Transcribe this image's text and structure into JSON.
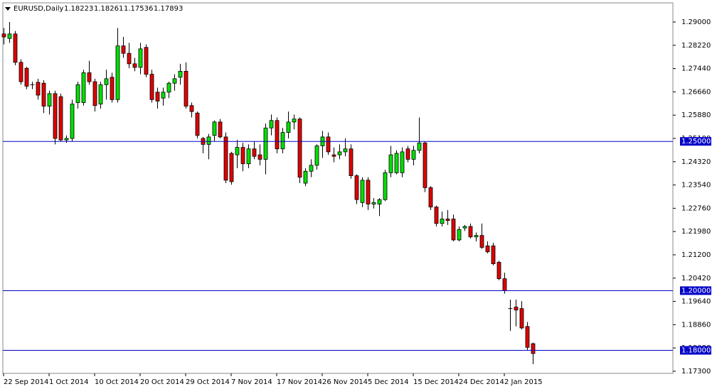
{
  "chart_data": {
    "type": "candlestick",
    "title": "EURUSD,Daily",
    "categories": [
      "22 Sep 2014",
      null,
      null,
      null,
      null,
      null,
      null,
      null,
      "1 Oct 2014",
      null,
      null,
      null,
      null,
      null,
      null,
      null,
      "10 Oct 2014",
      null,
      null,
      null,
      null,
      null,
      null,
      null,
      "20 Oct 2014",
      null,
      null,
      null,
      null,
      null,
      null,
      null,
      "29 Oct 2014",
      null,
      null,
      null,
      null,
      null,
      null,
      null,
      "7 Nov 2014",
      null,
      null,
      null,
      null,
      null,
      null,
      null,
      "17 Nov 2014",
      null,
      null,
      null,
      null,
      null,
      null,
      null,
      "26 Nov 2014",
      null,
      null,
      null,
      null,
      null,
      null,
      null,
      "5 Dec 2014",
      null,
      null,
      null,
      null,
      null,
      null,
      null,
      "15 Dec 2014",
      null,
      null,
      null,
      null,
      null,
      null,
      null,
      "24 Dec 2014",
      null,
      null,
      null,
      null,
      null,
      null,
      null,
      "2 Jan 2015",
      null,
      null,
      null,
      null,
      null
    ],
    "open": [
      1.286,
      1.2845,
      1.286,
      1.2765,
      1.2745,
      1.269,
      1.2698,
      1.2695,
      1.2618,
      1.266,
      1.265,
      1.2505,
      1.251,
      1.263,
      1.263,
      1.273,
      1.27,
      1.2625,
      1.269,
      1.2715,
      1.264,
      1.282,
      1.2795,
      1.276,
      1.2748,
      1.2815,
      1.2725,
      1.2665,
      1.2645,
      1.2665,
      1.2695,
      1.2715,
      1.2735,
      1.262,
      1.2595,
      1.251,
      1.249,
      1.252,
      1.2565,
      1.2515,
      1.246,
      1.2455,
      1.248,
      1.2425,
      1.2475,
      1.2455,
      1.244,
      1.2545,
      1.257,
      1.2475,
      1.253,
      1.2565,
      1.2575,
      1.236,
      1.24,
      1.242,
      1.2485,
      1.2515,
      1.2455,
      1.2455,
      1.2465,
      1.2475,
      1.2385,
      1.2295,
      1.237,
      1.229,
      1.229,
      1.2305,
      1.2395,
      1.2395,
      1.2395,
      1.2475,
      1.244,
      1.247,
      1.2495,
      1.2345,
      1.228,
      1.2225,
      1.224,
      1.224,
      1.217,
      1.221,
      1.2215,
      1.218,
      1.2185,
      1.215,
      1.215,
      1.2095,
      1.204,
      1.194,
      1.1945,
      1.194,
      1.188,
      1.18223
    ],
    "high": [
      1.288,
      1.29,
      1.287,
      1.2775,
      1.275,
      1.27,
      1.271,
      1.2705,
      1.267,
      1.267,
      1.266,
      1.252,
      1.264,
      1.27,
      1.274,
      1.277,
      1.271,
      1.27,
      1.274,
      1.273,
      1.288,
      1.285,
      1.283,
      1.278,
      1.283,
      1.2825,
      1.274,
      1.268,
      1.268,
      1.27,
      1.2725,
      1.276,
      1.2765,
      1.263,
      1.26,
      1.2515,
      1.2525,
      1.257,
      1.2575,
      1.253,
      1.2465,
      1.2505,
      1.2495,
      1.249,
      1.25,
      1.249,
      1.256,
      1.259,
      1.258,
      1.2545,
      1.26,
      1.259,
      1.258,
      1.241,
      1.244,
      1.249,
      1.2535,
      1.253,
      1.248,
      1.249,
      1.251,
      1.249,
      1.239,
      1.238,
      1.238,
      1.231,
      1.231,
      1.2405,
      1.2485,
      1.247,
      1.248,
      1.2485,
      1.2485,
      1.258,
      1.25,
      1.235,
      1.2285,
      1.2265,
      1.227,
      1.2255,
      1.2215,
      1.222,
      1.2225,
      1.2195,
      1.2225,
      1.2165,
      1.216,
      1.21,
      1.206,
      1.197,
      1.197,
      1.1965,
      1.1895,
      1.18261
    ],
    "low": [
      1.2825,
      1.283,
      1.2755,
      1.269,
      1.2675,
      1.2675,
      1.264,
      1.2595,
      1.259,
      1.249,
      1.25,
      1.2495,
      1.25,
      1.261,
      1.262,
      1.269,
      1.26,
      1.261,
      1.264,
      1.263,
      1.263,
      1.278,
      1.2745,
      1.2735,
      1.2725,
      1.2715,
      1.263,
      1.261,
      1.262,
      1.2645,
      1.267,
      1.269,
      1.261,
      1.258,
      1.251,
      1.246,
      1.244,
      1.25,
      1.251,
      1.236,
      1.2355,
      1.241,
      1.24,
      1.241,
      1.244,
      1.242,
      1.239,
      1.252,
      1.246,
      1.246,
      1.251,
      1.254,
      1.236,
      1.235,
      1.238,
      1.2405,
      1.2445,
      1.2455,
      1.243,
      1.244,
      1.245,
      1.2375,
      1.229,
      1.228,
      1.227,
      1.2275,
      1.225,
      1.23,
      1.238,
      1.239,
      1.238,
      1.243,
      1.242,
      1.246,
      1.233,
      1.227,
      1.2215,
      1.2215,
      1.222,
      1.2165,
      1.2165,
      1.22,
      1.2175,
      1.2165,
      1.214,
      1.2125,
      1.2085,
      1.2035,
      1.199,
      1.1865,
      1.188,
      1.187,
      1.18,
      1.17536
    ],
    "close": [
      1.285,
      1.286,
      1.2765,
      1.27,
      1.2685,
      1.2688,
      1.2655,
      1.2618,
      1.266,
      1.251,
      1.2505,
      1.251,
      1.2625,
      1.269,
      1.273,
      1.27,
      1.262,
      1.269,
      1.271,
      1.264,
      1.282,
      1.2795,
      1.276,
      1.2748,
      1.281,
      1.2725,
      1.264,
      1.2635,
      1.2665,
      1.2695,
      1.271,
      1.2735,
      1.2618,
      1.26,
      1.252,
      1.249,
      1.2515,
      1.2565,
      1.2515,
      1.237,
      1.2365,
      1.248,
      1.2425,
      1.2475,
      1.245,
      1.244,
      1.2545,
      1.257,
      1.2475,
      1.253,
      1.2565,
      1.2575,
      1.238,
      1.24,
      1.242,
      1.2485,
      1.2515,
      1.2465,
      1.245,
      1.2465,
      1.2475,
      1.2385,
      1.2305,
      1.237,
      1.229,
      1.2295,
      1.2305,
      1.2395,
      1.2455,
      1.246,
      1.2465,
      1.244,
      1.247,
      1.2495,
      1.2345,
      1.228,
      1.2225,
      1.224,
      1.2235,
      1.217,
      1.2205,
      1.2215,
      1.218,
      1.2185,
      1.2145,
      1.213,
      1.209,
      1.204,
      1.2,
      1.194,
      1.1935,
      1.1875,
      1.181,
      1.17893
    ],
    "ylim": [
      1.17228,
      1.29642
    ],
    "yticks": [
      {
        "value": 1.29,
        "label": "1.29000"
      },
      {
        "value": 1.2822,
        "label": "1.28220"
      },
      {
        "value": 1.2744,
        "label": "1.27440"
      },
      {
        "value": 1.2666,
        "label": "1.26660"
      },
      {
        "value": 1.2588,
        "label": "1.25880"
      },
      {
        "value": 1.251,
        "label": "1.25100"
      },
      {
        "value": 1.2432,
        "label": "1.24320"
      },
      {
        "value": 1.2354,
        "label": "1.23540"
      },
      {
        "value": 1.2276,
        "label": "1.22760"
      },
      {
        "value": 1.2198,
        "label": "1.21980"
      },
      {
        "value": 1.212,
        "label": "1.21200"
      },
      {
        "value": 1.2042,
        "label": "1.20420"
      },
      {
        "value": 1.1964,
        "label": "1.19640"
      },
      {
        "value": 1.1886,
        "label": "1.18860"
      },
      {
        "value": 1.1808,
        "label": "1.18080"
      },
      {
        "value": 1.173,
        "label": "1.17300"
      }
    ],
    "hlines": [
      {
        "value": 1.25,
        "label": "1.25000"
      },
      {
        "value": 1.2,
        "label": "1.20000"
      },
      {
        "value": 1.18,
        "label": "1.18000"
      }
    ],
    "up_color": "#00e000",
    "down_color": "#e00000",
    "hline_color": "#0000c8"
  }
}
